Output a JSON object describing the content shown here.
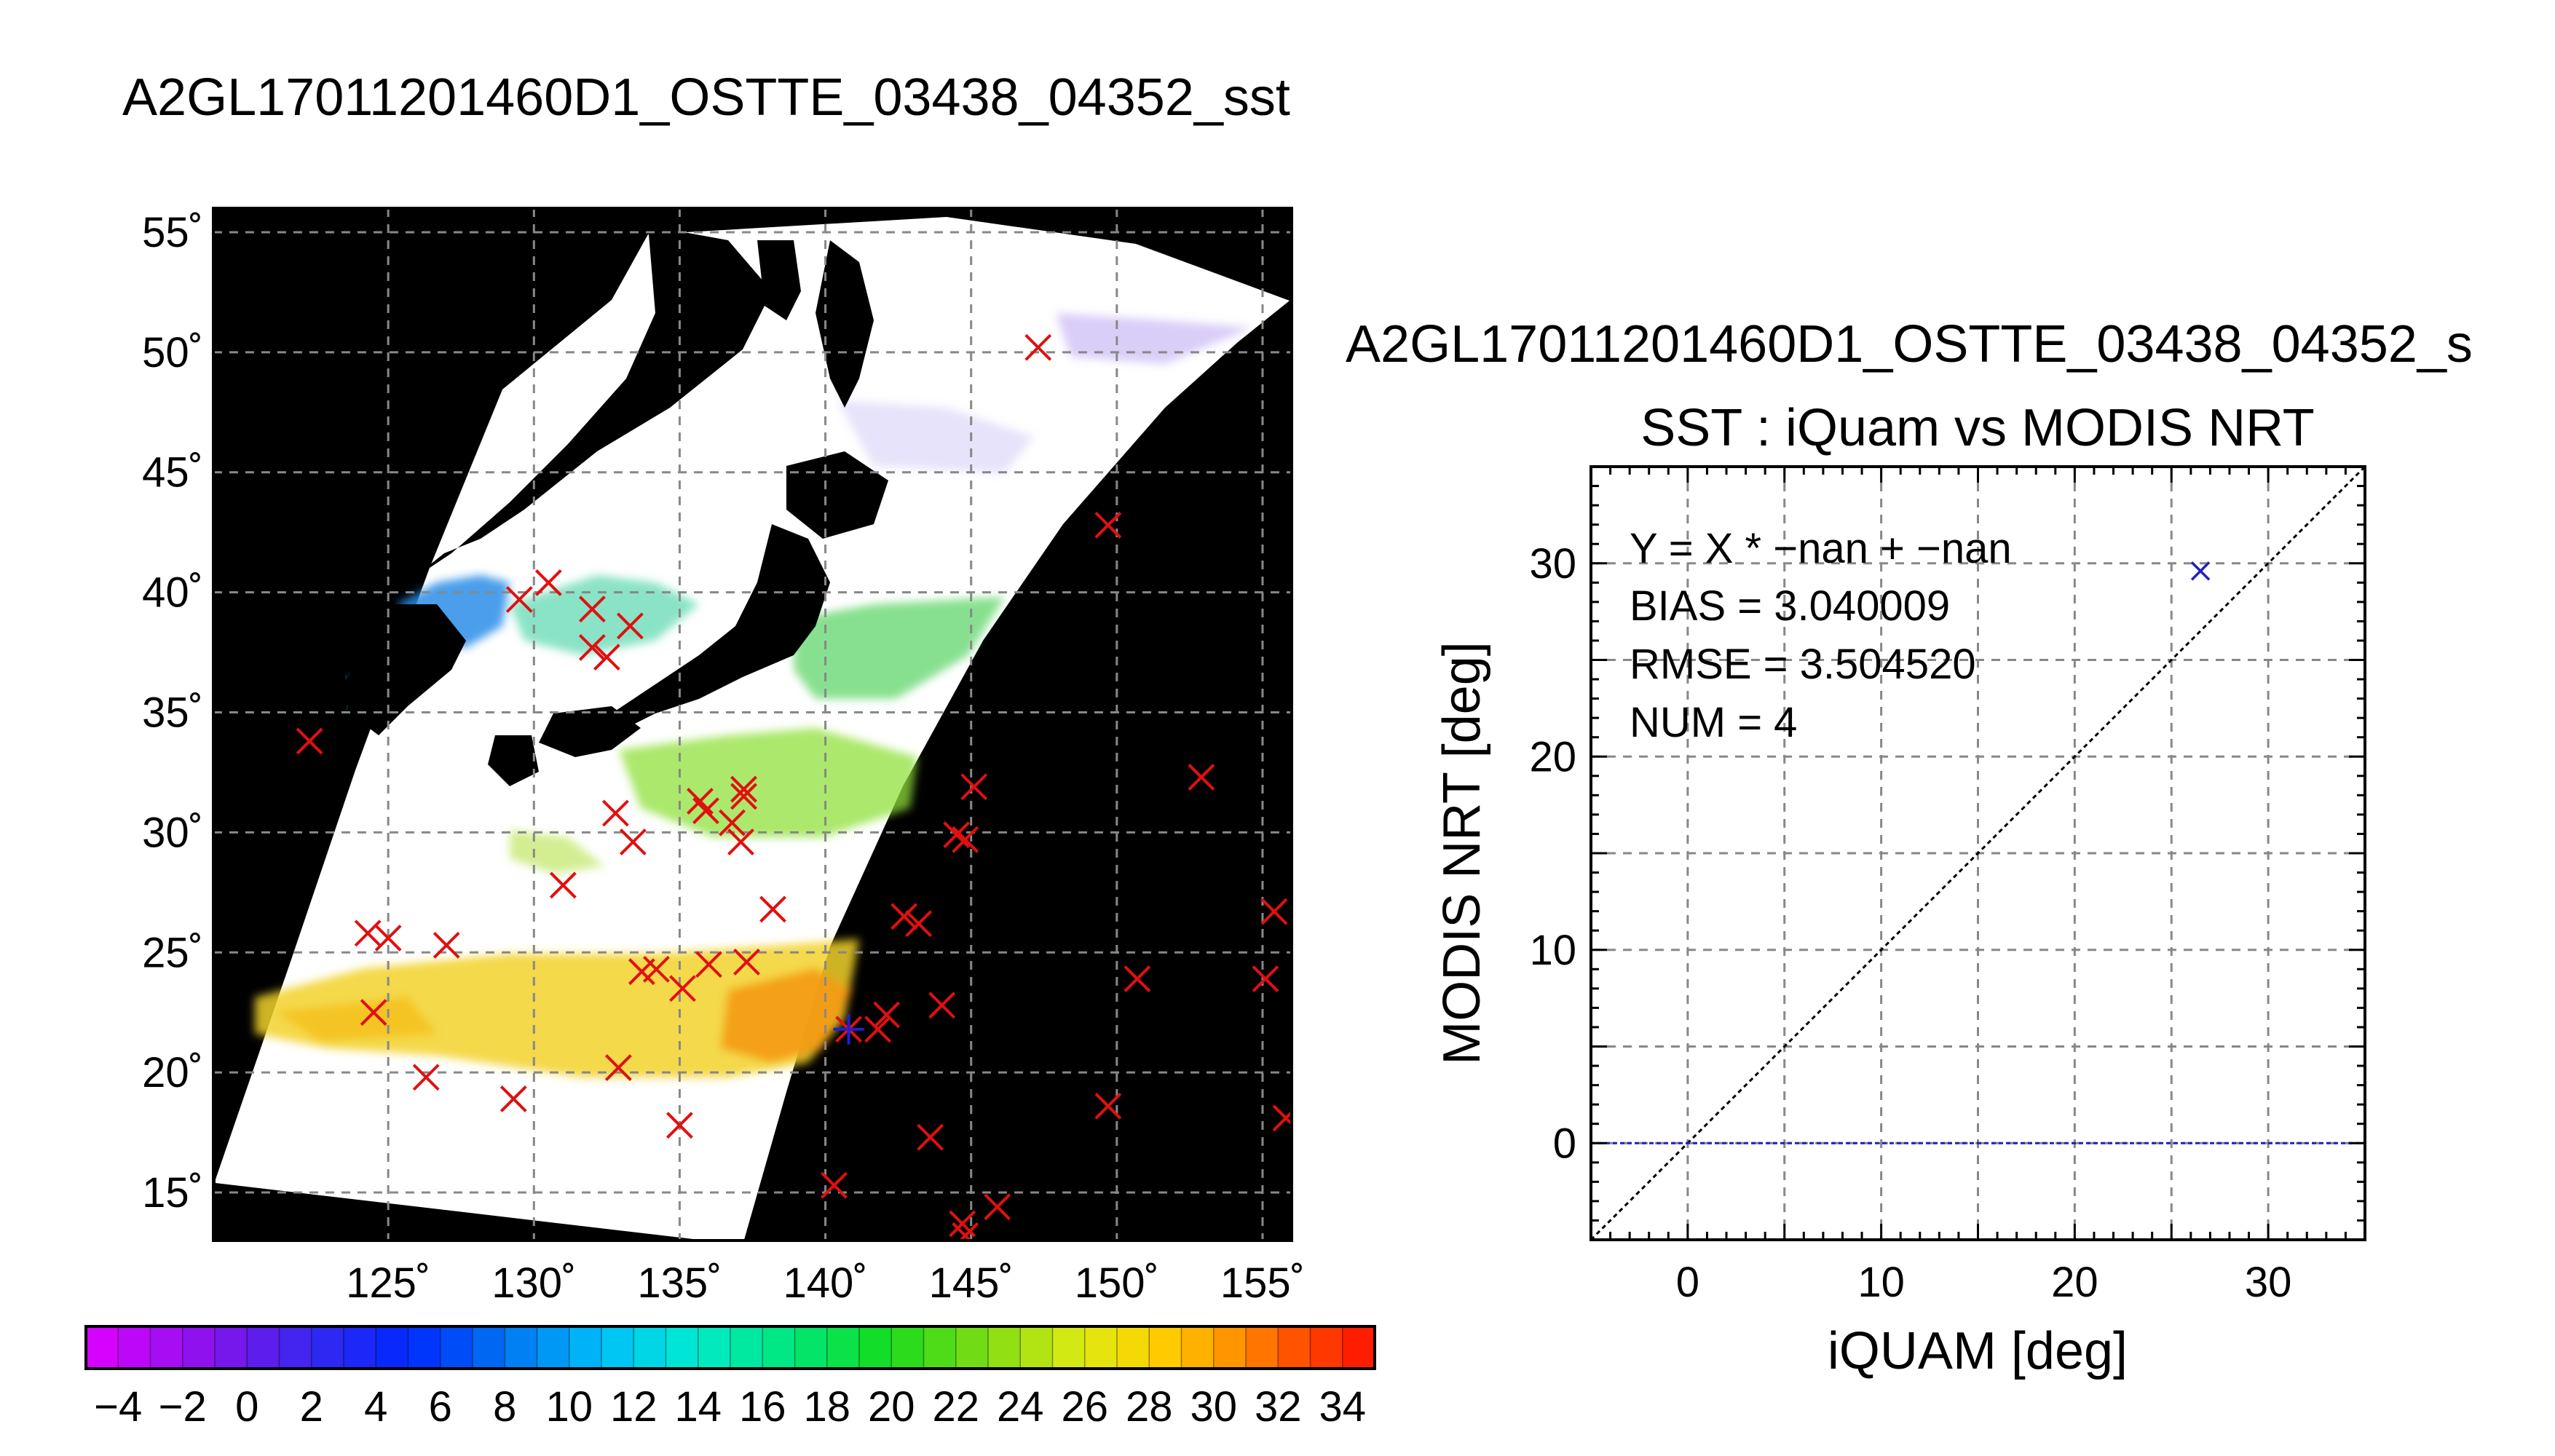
{
  "figure_title": "A2GL17011201460D1_OSTTE_03438_04352_sst",
  "chart_data": [
    {
      "type": "map",
      "title": "",
      "lon_ticks": [
        125,
        130,
        135,
        140,
        145,
        150,
        155
      ],
      "lat_ticks": [
        15,
        20,
        25,
        30,
        35,
        40,
        45,
        50,
        55
      ],
      "lon_range": [
        119,
        156
      ],
      "lat_range": [
        13,
        56
      ],
      "lon_tick_labels": [
        "125˚",
        "130˚",
        "135˚",
        "140˚",
        "145˚",
        "150˚",
        "155˚"
      ],
      "lat_tick_labels": [
        "15˚",
        "20˚",
        "25˚",
        "30˚",
        "35˚",
        "40˚",
        "45˚",
        "50˚",
        "55˚"
      ],
      "markers": [
        {
          "lon": 122.3,
          "lat": 33.8
        },
        {
          "lon": 124.3,
          "lat": 25.8
        },
        {
          "lon": 125.0,
          "lat": 25.6
        },
        {
          "lon": 124.5,
          "lat": 22.5
        },
        {
          "lon": 127.0,
          "lat": 25.3
        },
        {
          "lon": 126.3,
          "lat": 19.8
        },
        {
          "lon": 129.3,
          "lat": 18.9
        },
        {
          "lon": 129.5,
          "lat": 39.7
        },
        {
          "lon": 130.5,
          "lat": 40.4
        },
        {
          "lon": 131.0,
          "lat": 27.8
        },
        {
          "lon": 132.0,
          "lat": 39.3
        },
        {
          "lon": 132.0,
          "lat": 37.7
        },
        {
          "lon": 132.5,
          "lat": 37.3
        },
        {
          "lon": 133.3,
          "lat": 38.6
        },
        {
          "lon": 132.8,
          "lat": 30.8
        },
        {
          "lon": 133.4,
          "lat": 29.6
        },
        {
          "lon": 132.9,
          "lat": 20.2
        },
        {
          "lon": 133.7,
          "lat": 24.2
        },
        {
          "lon": 134.2,
          "lat": 24.3
        },
        {
          "lon": 135.1,
          "lat": 23.5
        },
        {
          "lon": 135.0,
          "lat": 17.8
        },
        {
          "lon": 135.7,
          "lat": 31.3
        },
        {
          "lon": 135.9,
          "lat": 30.9
        },
        {
          "lon": 136.0,
          "lat": 24.5
        },
        {
          "lon": 136.8,
          "lat": 30.4
        },
        {
          "lon": 137.2,
          "lat": 31.8
        },
        {
          "lon": 137.2,
          "lat": 31.5
        },
        {
          "lon": 137.1,
          "lat": 29.6
        },
        {
          "lon": 137.3,
          "lat": 24.6
        },
        {
          "lon": 138.2,
          "lat": 26.8
        },
        {
          "lon": 140.3,
          "lat": 15.3
        },
        {
          "lon": 141.8,
          "lat": 21.8
        },
        {
          "lon": 142.1,
          "lat": 22.4
        },
        {
          "lon": 142.7,
          "lat": 26.5
        },
        {
          "lon": 143.2,
          "lat": 26.2
        },
        {
          "lon": 143.6,
          "lat": 17.3
        },
        {
          "lon": 144.0,
          "lat": 22.8
        },
        {
          "lon": 144.5,
          "lat": 29.9
        },
        {
          "lon": 144.8,
          "lat": 29.7
        },
        {
          "lon": 145.1,
          "lat": 31.9
        },
        {
          "lon": 145.9,
          "lat": 14.4
        },
        {
          "lon": 144.7,
          "lat": 13.7
        },
        {
          "lon": 144.8,
          "lat": 13.2
        },
        {
          "lon": 147.3,
          "lat": 50.2
        },
        {
          "lon": 149.7,
          "lat": 42.8
        },
        {
          "lon": 149.7,
          "lat": 18.6
        },
        {
          "lon": 150.7,
          "lat": 23.9
        },
        {
          "lon": 152.9,
          "lat": 32.3
        },
        {
          "lon": 155.1,
          "lat": 23.9
        },
        {
          "lon": 155.4,
          "lat": 26.7
        },
        {
          "lon": 155.8,
          "lat": 18.1
        }
      ],
      "highlight_marker": {
        "lon": 140.8,
        "lat": 21.8
      }
    },
    {
      "type": "colorbar",
      "min": -5,
      "max": 35,
      "tick_labels": [
        "−4",
        "−2",
        "0",
        "2",
        "4",
        "6",
        "8",
        "10",
        "12",
        "14",
        "16",
        "18",
        "20",
        "22",
        "24",
        "26",
        "28",
        "30",
        "32",
        "34"
      ],
      "tick_values": [
        -4,
        -2,
        0,
        2,
        4,
        6,
        8,
        10,
        12,
        14,
        16,
        18,
        20,
        22,
        24,
        26,
        28,
        30,
        32,
        34
      ]
    },
    {
      "type": "scatter",
      "header": "A2GL17011201460D1_OSTTE_03438_04352_s",
      "title": "SST : iQuam vs MODIS NRT",
      "xlabel": "iQUAM [deg]",
      "ylabel": "MODIS NRT [deg]",
      "xlim": [
        -5,
        35
      ],
      "ylim": [
        -5,
        35
      ],
      "x_ticks": [
        0,
        10,
        20,
        30
      ],
      "y_ticks": [
        0,
        10,
        20,
        30
      ],
      "x_tick_labels": [
        "0",
        "10",
        "20",
        "30"
      ],
      "y_tick_labels": [
        "0",
        "10",
        "20",
        "30"
      ],
      "points": [
        {
          "x": 26.5,
          "y": 29.6
        }
      ],
      "reference_line": "y = x",
      "baseline_y": 0,
      "stats": [
        "Y = X * −nan + −nan",
        "BIAS = 3.040009",
        "RMSE = 3.504520",
        "NUM = 4"
      ]
    }
  ]
}
